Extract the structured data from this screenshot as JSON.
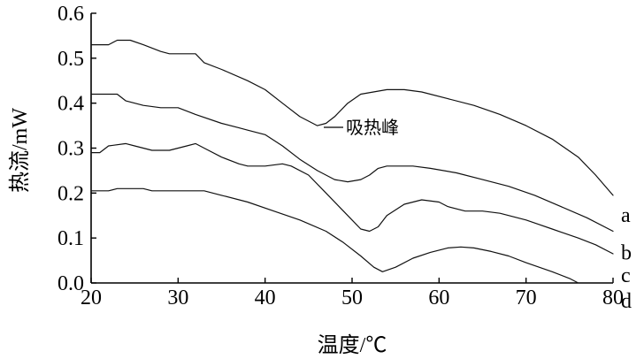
{
  "chart_data": {
    "type": "line",
    "xlabel": "温度/℃",
    "ylabel": "热流/mW",
    "xlim": [
      20,
      80
    ],
    "ylim": [
      0.0,
      0.6
    ],
    "x_ticks": [
      "20",
      "30",
      "40",
      "50",
      "60",
      "70",
      "80"
    ],
    "y_ticks": [
      "0.0",
      "0.1",
      "0.2",
      "0.3",
      "0.4",
      "0.5",
      "0.6"
    ],
    "grid": false,
    "annotation": {
      "text": "吸热峰",
      "x": 47,
      "y": 0.35
    },
    "series": [
      {
        "name": "a",
        "points": [
          [
            20,
            0.53
          ],
          [
            22,
            0.53
          ],
          [
            23,
            0.54
          ],
          [
            24.5,
            0.54
          ],
          [
            26,
            0.53
          ],
          [
            28,
            0.515
          ],
          [
            29,
            0.51
          ],
          [
            32,
            0.51
          ],
          [
            33,
            0.49
          ],
          [
            35,
            0.475
          ],
          [
            38,
            0.45
          ],
          [
            40,
            0.43
          ],
          [
            42,
            0.4
          ],
          [
            44,
            0.37
          ],
          [
            46,
            0.35
          ],
          [
            47,
            0.355
          ],
          [
            48,
            0.37
          ],
          [
            49.5,
            0.4
          ],
          [
            51,
            0.42
          ],
          [
            54,
            0.43
          ],
          [
            56,
            0.43
          ],
          [
            58,
            0.425
          ],
          [
            61,
            0.41
          ],
          [
            64,
            0.395
          ],
          [
            67,
            0.375
          ],
          [
            70,
            0.35
          ],
          [
            73,
            0.32
          ],
          [
            76,
            0.28
          ],
          [
            78,
            0.24
          ],
          [
            80,
            0.195
          ]
        ]
      },
      {
        "name": "b",
        "points": [
          [
            20,
            0.42
          ],
          [
            22,
            0.42
          ],
          [
            23,
            0.42
          ],
          [
            24,
            0.405
          ],
          [
            26,
            0.395
          ],
          [
            28,
            0.39
          ],
          [
            30,
            0.39
          ],
          [
            32,
            0.375
          ],
          [
            35,
            0.355
          ],
          [
            37,
            0.345
          ],
          [
            38,
            0.34
          ],
          [
            40,
            0.33
          ],
          [
            42,
            0.305
          ],
          [
            44,
            0.275
          ],
          [
            46,
            0.25
          ],
          [
            48,
            0.23
          ],
          [
            49.5,
            0.225
          ],
          [
            51,
            0.23
          ],
          [
            52,
            0.24
          ],
          [
            53,
            0.255
          ],
          [
            54,
            0.26
          ],
          [
            57,
            0.26
          ],
          [
            59,
            0.255
          ],
          [
            62,
            0.245
          ],
          [
            65,
            0.23
          ],
          [
            68,
            0.215
          ],
          [
            71,
            0.195
          ],
          [
            74,
            0.17
          ],
          [
            77,
            0.145
          ],
          [
            80,
            0.115
          ]
        ]
      },
      {
        "name": "c",
        "points": [
          [
            20,
            0.29
          ],
          [
            21,
            0.29
          ],
          [
            22,
            0.305
          ],
          [
            24,
            0.31
          ],
          [
            25,
            0.305
          ],
          [
            27,
            0.295
          ],
          [
            29,
            0.295
          ],
          [
            31,
            0.305
          ],
          [
            32,
            0.31
          ],
          [
            33,
            0.3
          ],
          [
            35,
            0.28
          ],
          [
            37,
            0.265
          ],
          [
            38,
            0.26
          ],
          [
            40,
            0.26
          ],
          [
            42,
            0.265
          ],
          [
            43,
            0.26
          ],
          [
            45,
            0.24
          ],
          [
            47,
            0.2
          ],
          [
            49,
            0.16
          ],
          [
            51,
            0.12
          ],
          [
            52,
            0.115
          ],
          [
            53,
            0.125
          ],
          [
            54,
            0.15
          ],
          [
            56,
            0.175
          ],
          [
            58,
            0.185
          ],
          [
            60,
            0.18
          ],
          [
            61,
            0.17
          ],
          [
            63,
            0.16
          ],
          [
            65,
            0.16
          ],
          [
            67,
            0.155
          ],
          [
            70,
            0.14
          ],
          [
            73,
            0.12
          ],
          [
            76,
            0.1
          ],
          [
            78,
            0.085
          ],
          [
            80,
            0.065
          ]
        ]
      },
      {
        "name": "d",
        "points": [
          [
            20,
            0.205
          ],
          [
            21,
            0.205
          ],
          [
            22,
            0.205
          ],
          [
            23,
            0.21
          ],
          [
            26,
            0.21
          ],
          [
            27,
            0.205
          ],
          [
            29,
            0.205
          ],
          [
            31,
            0.205
          ],
          [
            33,
            0.205
          ],
          [
            35,
            0.195
          ],
          [
            38,
            0.18
          ],
          [
            41,
            0.16
          ],
          [
            44,
            0.14
          ],
          [
            47,
            0.115
          ],
          [
            49,
            0.09
          ],
          [
            51,
            0.06
          ],
          [
            52.5,
            0.035
          ],
          [
            53.5,
            0.025
          ],
          [
            55,
            0.035
          ],
          [
            57,
            0.055
          ],
          [
            59,
            0.068
          ],
          [
            61,
            0.078
          ],
          [
            62.5,
            0.08
          ],
          [
            64,
            0.078
          ],
          [
            66,
            0.07
          ],
          [
            68,
            0.06
          ],
          [
            70,
            0.045
          ],
          [
            73,
            0.025
          ],
          [
            75,
            0.01
          ],
          [
            76,
            0.0
          ]
        ]
      }
    ]
  }
}
